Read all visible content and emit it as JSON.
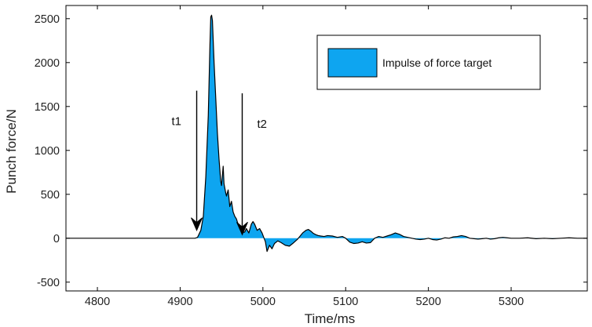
{
  "chart_data": {
    "type": "area",
    "xlabel": "Time/ms",
    "ylabel": "Punch force/N",
    "xlim": [
      4762,
      5392
    ],
    "ylim": [
      -600,
      2650
    ],
    "xticks": [
      4800,
      4900,
      5000,
      5100,
      5200,
      5300
    ],
    "yticks": [
      -500,
      0,
      500,
      1000,
      1500,
      2000,
      2500
    ],
    "grid": false,
    "legend": {
      "placement": "top-right",
      "label": "Impulse of force target"
    },
    "fill_color": "#0ea5f0",
    "line_color": "#000000",
    "series": [
      {
        "name": "Impulse of force target",
        "x": [
          4762,
          4900,
          4918,
          4921,
          4925,
          4928,
          4931,
          4934,
          4936,
          4937,
          4938,
          4939,
          4941,
          4943,
          4945,
          4947,
          4949,
          4950,
          4952,
          4953,
          4955,
          4956,
          4958,
          4960,
          4962,
          4964,
          4966,
          4968,
          4970,
          4972,
          4974,
          4976,
          4978,
          4980,
          4983,
          4986,
          4988,
          4990,
          4993,
          4996,
          4999,
          5001,
          5003,
          5005,
          5008,
          5011,
          5014,
          5018,
          5022,
          5027,
          5032,
          5036,
          5042,
          5048,
          5052,
          5055,
          5058,
          5061,
          5064,
          5067,
          5070,
          5074,
          5078,
          5084,
          5090,
          5096,
          5100,
          5105,
          5110,
          5115,
          5120,
          5125,
          5130,
          5135,
          5140,
          5145,
          5150,
          5155,
          5160,
          5165,
          5170,
          5175,
          5180,
          5185,
          5190,
          5195,
          5200,
          5205,
          5210,
          5215,
          5220,
          5225,
          5230,
          5235,
          5240,
          5245,
          5250,
          5255,
          5260,
          5265,
          5270,
          5275,
          5280,
          5285,
          5290,
          5295,
          5300,
          5310,
          5320,
          5330,
          5340,
          5350,
          5360,
          5370,
          5380,
          5392
        ],
        "y": [
          0,
          0,
          0,
          10,
          90,
          250,
          700,
          1400,
          2200,
          2520,
          2540,
          2480,
          2000,
          1600,
          1200,
          900,
          650,
          600,
          820,
          620,
          520,
          480,
          550,
          360,
          420,
          300,
          250,
          220,
          160,
          110,
          75,
          65,
          70,
          110,
          60,
          160,
          190,
          160,
          90,
          110,
          60,
          10,
          -40,
          -150,
          -80,
          -120,
          -60,
          -30,
          -50,
          -80,
          -90,
          -60,
          -10,
          60,
          90,
          100,
          80,
          55,
          40,
          30,
          25,
          20,
          30,
          25,
          10,
          20,
          0,
          -45,
          -60,
          -55,
          -40,
          -55,
          -50,
          0,
          20,
          10,
          25,
          40,
          60,
          45,
          20,
          10,
          0,
          -10,
          -15,
          -10,
          0,
          -15,
          -20,
          -10,
          5,
          0,
          15,
          20,
          30,
          20,
          0,
          -5,
          -10,
          -5,
          0,
          -10,
          -5,
          5,
          10,
          5,
          0,
          0,
          5,
          -5,
          0,
          -5,
          0,
          5,
          0,
          0
        ]
      }
    ],
    "annotations": [
      {
        "text": "t1",
        "arrow_x": 4920,
        "arrow_from_y": 1680,
        "arrow_to_y": 90
      },
      {
        "text": "t2",
        "arrow_x": 4975,
        "arrow_from_y": 1650,
        "arrow_to_y": 40
      }
    ]
  }
}
